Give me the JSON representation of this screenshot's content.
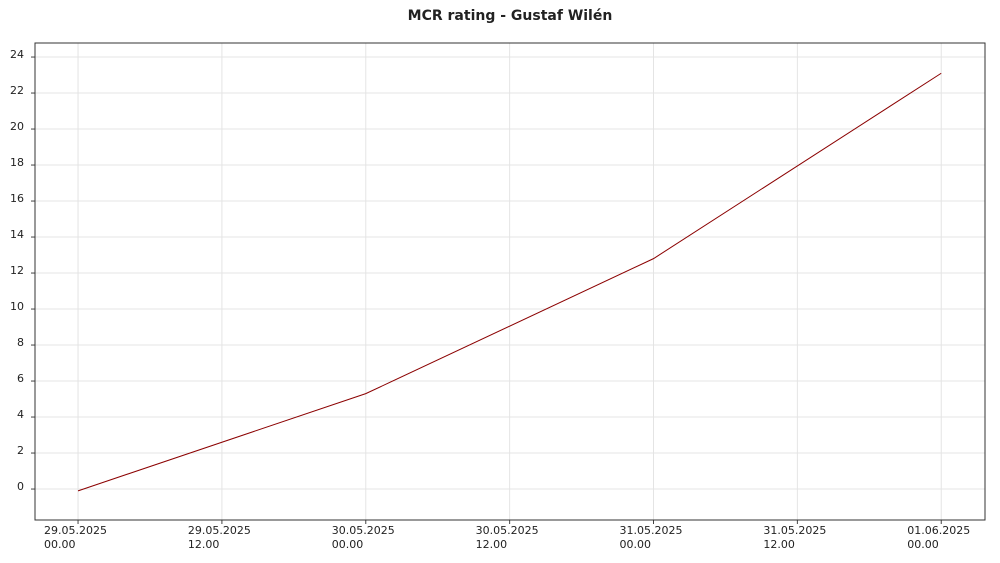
{
  "chart_data": {
    "type": "line",
    "title": "MCR rating - Gustaf Wilén",
    "x": [
      0,
      24,
      48,
      72
    ],
    "series": [
      {
        "name": "MCR rating",
        "color": "#8b0000",
        "values": [
          -0.1,
          5.3,
          12.8,
          23.1
        ]
      }
    ],
    "xlim": [
      -3.59,
      75.65
    ],
    "xticks": [
      {
        "value": 0,
        "label": "29.05.2025 00.00"
      },
      {
        "value": 12,
        "label": "29.05.2025 12.00"
      },
      {
        "value": 24,
        "label": "30.05.2025 00.00"
      },
      {
        "value": 36,
        "label": "30.05.2025 12.00"
      },
      {
        "value": 48,
        "label": "31.05.2025 00.00"
      },
      {
        "value": 60,
        "label": "31.05.2025 12.00"
      },
      {
        "value": 72,
        "label": "01.06.2025 00.00"
      }
    ],
    "ylim": [
      -1.72,
      24.78
    ],
    "yticks": [
      0,
      2,
      4,
      6,
      8,
      10,
      12,
      14,
      16,
      18,
      20,
      22,
      24
    ],
    "grid": true
  }
}
